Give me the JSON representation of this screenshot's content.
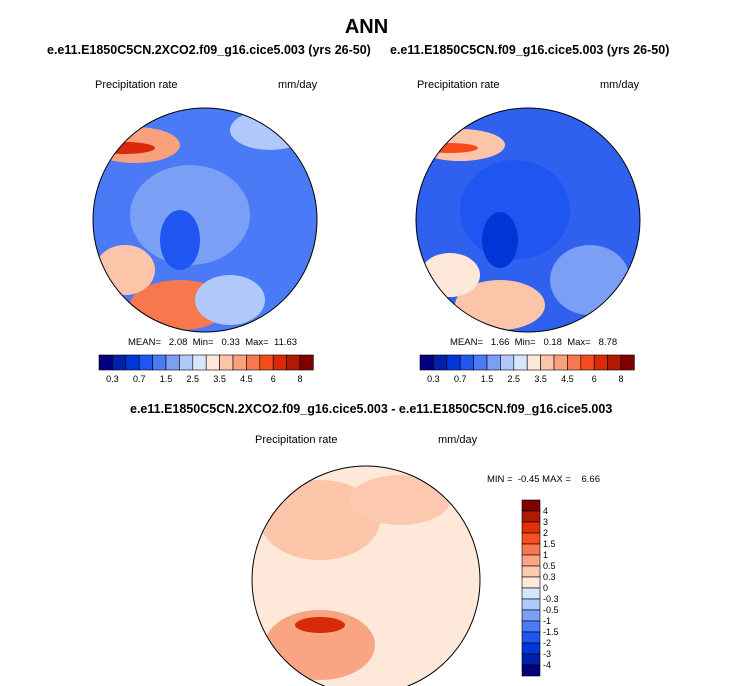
{
  "title": "ANN",
  "panels": [
    {
      "subtitle": "e.e11.E1850C5CN.2XCO2.f09_g16.cice5.003 (yrs 26-50)",
      "variable": "Precipitation rate",
      "units": "mm/day",
      "stats": "MEAN=   2.08  Min=   0.33  Max=  11.63",
      "dominant_color": "#3f6fe8"
    },
    {
      "subtitle": "e.e11.E1850C5CN.f09_g16.cice5.003 (yrs 26-50)",
      "variable": "Precipitation rate",
      "units": "mm/day",
      "stats": "MEAN=   1.66  Min=   0.18  Max=   8.78",
      "dominant_color": "#2f5fe0"
    },
    {
      "subtitle": "e.e11.E1850C5CN.2XCO2.f09_g16.cice5.003 - e.e11.E1850C5CN.f09_g16.cice5.003",
      "variable": "Precipitation rate",
      "units": "mm/day",
      "stats": "MIN =  -0.45 MAX =    6.66",
      "dominant_color": "#fbd3bd"
    }
  ],
  "colorbar_abs": {
    "labels": [
      "0.3",
      "0.7",
      "1.5",
      "2.5",
      "3.5",
      "4.5",
      "6",
      "8"
    ],
    "colors": [
      "#00007f",
      "#0020a8",
      "#0035d8",
      "#1f55f0",
      "#4a7af5",
      "#7b9ff5",
      "#b0c8fa",
      "#d6e6fc",
      "#fde8da",
      "#fcc5aa",
      "#f9a07c",
      "#f6784c",
      "#f44a1c",
      "#d82a08",
      "#b01a05",
      "#800000"
    ]
  },
  "colorbar_diff": {
    "labels": [
      "4",
      "3",
      "2",
      "1.5",
      "1",
      "0.5",
      "0.3",
      "0",
      "-0.3",
      "-0.5",
      "-1",
      "-1.5",
      "-2",
      "-3",
      "-4"
    ],
    "colors": [
      "#800000",
      "#b01a05",
      "#e0300a",
      "#f6501f",
      "#f7784c",
      "#f9a584",
      "#fcc9b0",
      "#feeadb",
      "#d6e6fc",
      "#b0c8fa",
      "#7b9ff5",
      "#4a7af5",
      "#1f55f0",
      "#0035d8",
      "#0020a8",
      "#00007f"
    ]
  }
}
